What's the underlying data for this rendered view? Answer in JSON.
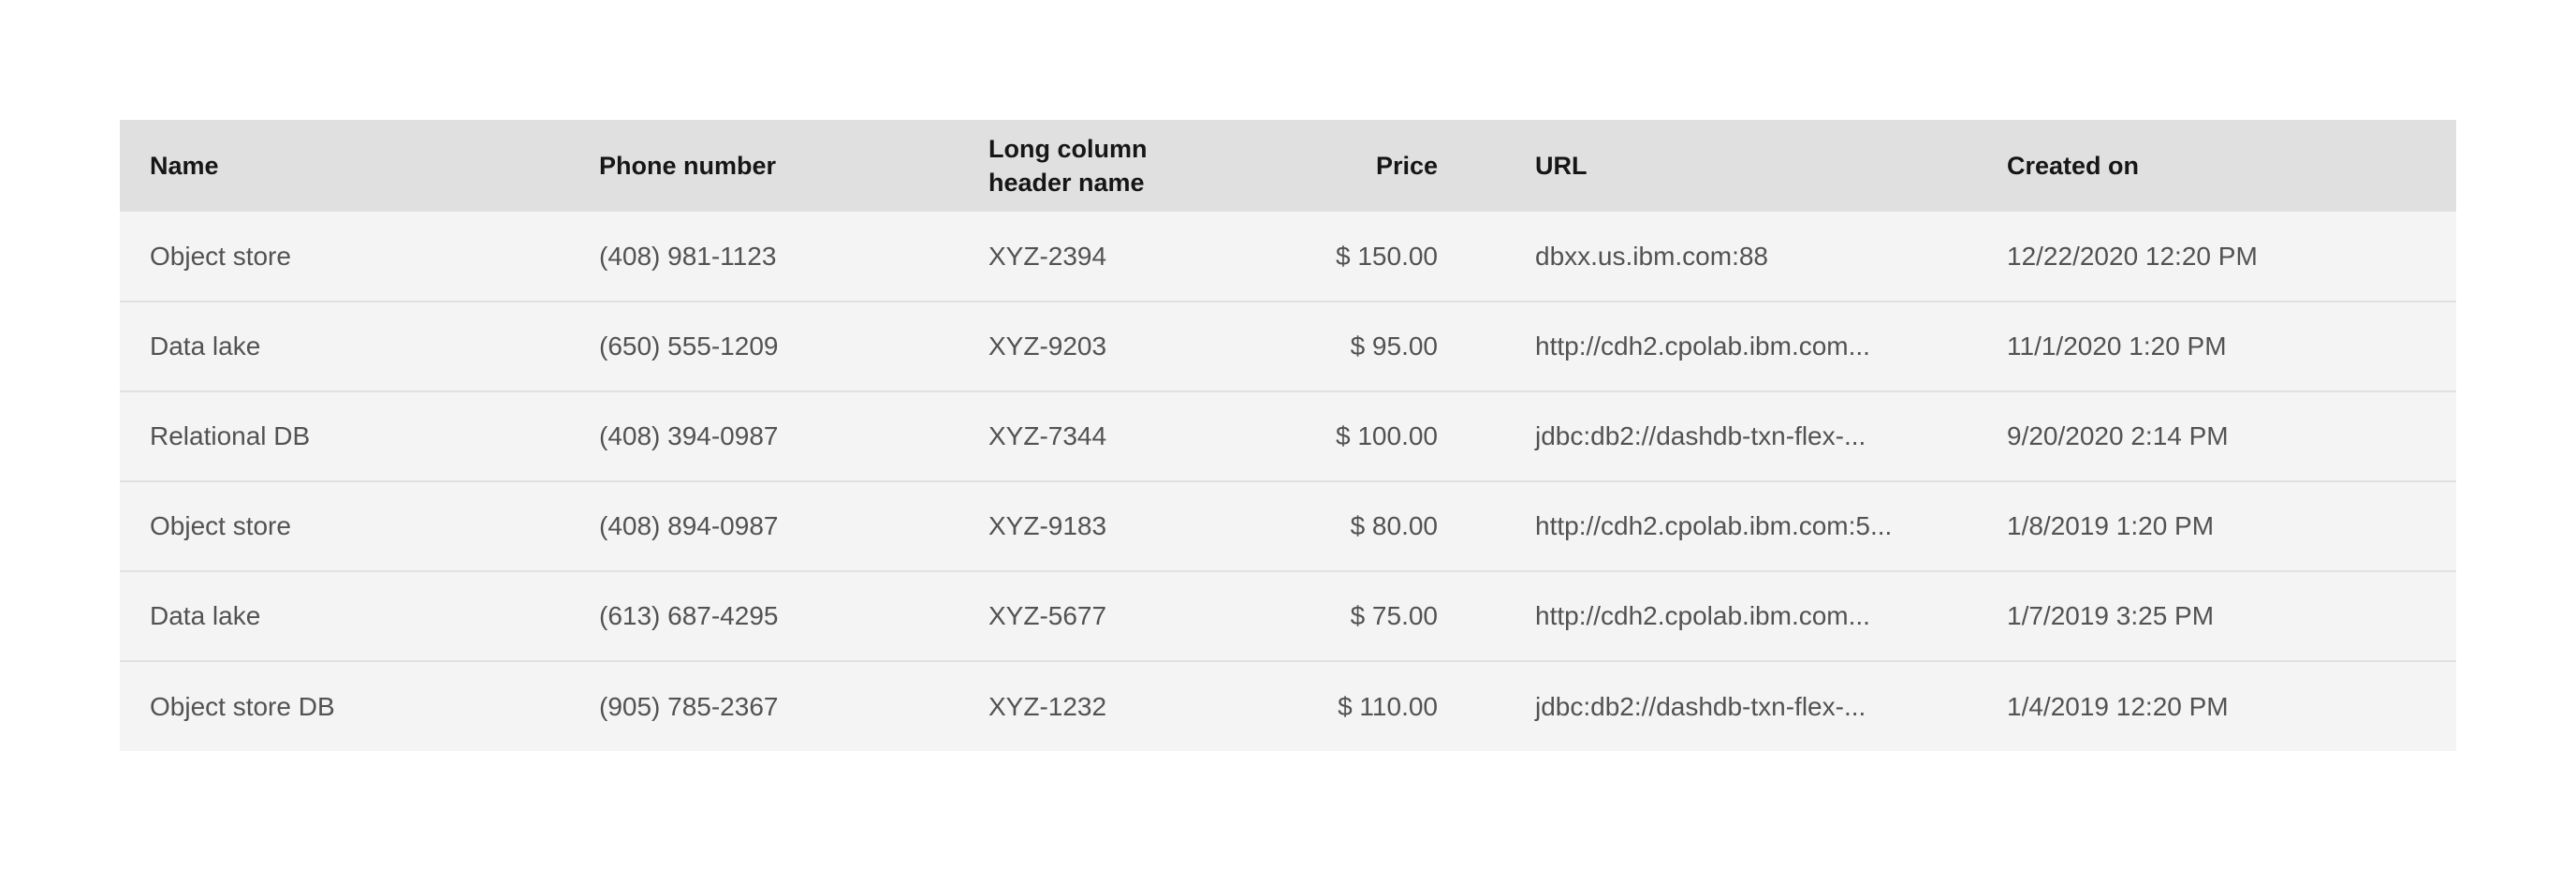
{
  "table": {
    "headers": {
      "name": "Name",
      "phone": "Phone number",
      "long_line1": "Long column",
      "long_line2": "header name",
      "price": "Price",
      "url": "URL",
      "created": "Created on"
    },
    "rows": [
      {
        "name": "Object store",
        "phone": "(408) 981-1123",
        "code": "XYZ-2394",
        "price": "$ 150.00",
        "url": "dbxx.us.ibm.com:88",
        "created": "12/22/2020 12:20 PM"
      },
      {
        "name": "Data lake",
        "phone": "(650) 555-1209",
        "code": "XYZ-9203",
        "price": "$ 95.00",
        "url": "http://cdh2.cpolab.ibm.com...",
        "created": "11/1/2020 1:20 PM"
      },
      {
        "name": "Relational DB",
        "phone": "(408) 394-0987",
        "code": "XYZ-7344",
        "price": "$ 100.00",
        "url": "jdbc:db2://dashdb-txn-flex-...",
        "created": "9/20/2020 2:14 PM"
      },
      {
        "name": "Object store",
        "phone": "(408) 894-0987",
        "code": "XYZ-9183",
        "price": "$ 80.00",
        "url": "http://cdh2.cpolab.ibm.com:5...",
        "created": "1/8/2019 1:20 PM"
      },
      {
        "name": "Data lake",
        "phone": "(613) 687-4295",
        "code": "XYZ-5677",
        "price": "$ 75.00",
        "url": "http://cdh2.cpolab.ibm.com...",
        "created": "1/7/2019 3:25 PM"
      },
      {
        "name": "Object store DB",
        "phone": "(905) 785-2367",
        "code": "XYZ-1232",
        "price": "$ 110.00",
        "url": "jdbc:db2://dashdb-txn-flex-...",
        "created": "1/4/2019 12:20 PM"
      }
    ]
  },
  "colors": {
    "header_bg": "#e0e0e0",
    "row_bg": "#f4f4f4",
    "header_text": "#161616",
    "cell_text": "#525252"
  }
}
